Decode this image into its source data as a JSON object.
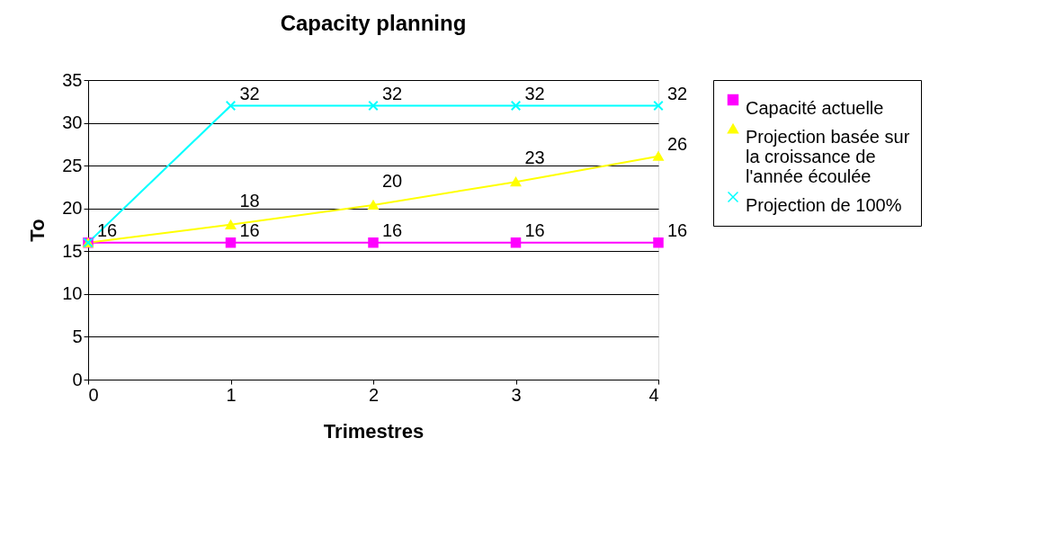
{
  "chart_data": {
    "type": "line",
    "title": "Capacity planning",
    "xlabel": "Trimestres",
    "ylabel": "To",
    "x": [
      0,
      1,
      2,
      3,
      4
    ],
    "xlim": [
      0,
      4
    ],
    "xticks": [
      0,
      1,
      2,
      3,
      4
    ],
    "ylim": [
      0,
      35
    ],
    "yticks": [
      0,
      5,
      10,
      15,
      20,
      25,
      30,
      35
    ],
    "grid": "y",
    "legend": "right",
    "line_style": "solid",
    "series": [
      {
        "name": "Capacité actuelle",
        "color": "#ff00ff",
        "marker": "square",
        "values": [
          16,
          16,
          16,
          16,
          16
        ],
        "value_labels": [
          "16",
          "16",
          "16",
          "16",
          "16"
        ]
      },
      {
        "name": "Projection basée sur la croissance de l'année écoulée",
        "color": "#ffff00",
        "marker": "triangle",
        "values": [
          16,
          18.1,
          20.4,
          23.1,
          26.1
        ],
        "value_labels": [
          null,
          "18",
          "20",
          "23",
          "26"
        ]
      },
      {
        "name": "Projection de 100%",
        "color": "#00ffff",
        "marker": "cross",
        "values": [
          16,
          32,
          32,
          32,
          32
        ],
        "value_labels": [
          null,
          "32",
          "32",
          "32",
          "32"
        ]
      }
    ]
  }
}
